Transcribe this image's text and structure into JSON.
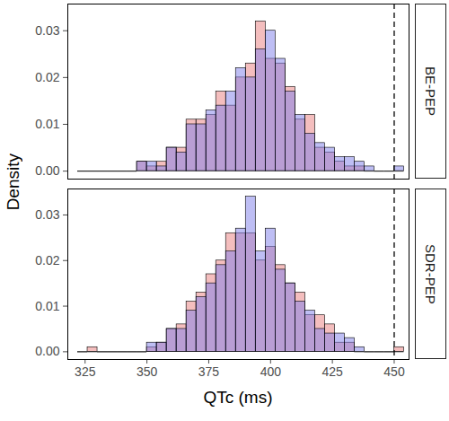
{
  "chart_data": {
    "type": "histogram",
    "xlabel": "QTc (ms)",
    "ylabel": "Density",
    "xlim": [
      318,
      456
    ],
    "xticks": [
      325,
      350,
      375,
      400,
      425,
      450
    ],
    "ylim": [
      -0.0017,
      0.0357
    ],
    "yticks": [
      {
        "value": 0,
        "label": "0.00"
      },
      {
        "value": 0.01,
        "label": "0.01"
      },
      {
        "value": 0.02,
        "label": "0.02"
      },
      {
        "value": 0.03,
        "label": "0.03"
      }
    ],
    "bins": [
      322,
      326,
      330,
      334,
      338,
      342,
      346,
      350,
      354,
      358,
      362,
      366,
      370,
      374,
      378,
      382,
      386,
      390,
      394,
      398,
      402,
      406,
      410,
      414,
      418,
      422,
      426,
      430,
      434,
      438,
      442,
      446,
      450,
      454
    ],
    "reference_lines": [
      {
        "x": 450,
        "line_style": "dashed"
      }
    ],
    "facets": [
      {
        "label": "BE-PEP",
        "series": [
          {
            "color": "#e97d7d",
            "values": [
              0,
              0,
              0,
              0,
              0,
              0,
              0.002,
              0.001,
              0.002,
              0.005,
              0.005,
              0.011,
              0.011,
              0.012,
              0.017,
              0.014,
              0.02,
              0.023,
              0.032,
              0.024,
              0.023,
              0.018,
              0.011,
              0.012,
              0.005,
              0.004,
              0.002,
              0.001,
              0.001,
              0,
              0,
              0,
              0
            ]
          },
          {
            "color": "#7d7de9",
            "values": [
              0,
              0,
              0,
              0,
              0,
              0,
              0.002,
              0.002,
              0.001,
              0.005,
              0.004,
              0.01,
              0.01,
              0.013,
              0.014,
              0.017,
              0.022,
              0.02,
              0.026,
              0.03,
              0.024,
              0.017,
              0.012,
              0.008,
              0.006,
              0.005,
              0.003,
              0.003,
              0.002,
              0.001,
              0,
              0,
              0.001
            ]
          }
        ]
      },
      {
        "label": "SDR-PEP",
        "series": [
          {
            "color": "#e97d7d",
            "values": [
              0,
              0.001,
              0,
              0,
              0,
              0,
              0,
              0.001,
              0.002,
              0.005,
              0.006,
              0.011,
              0.013,
              0.017,
              0.02,
              0.026,
              0.026,
              0.026,
              0.02,
              0.023,
              0.019,
              0.015,
              0.013,
              0.008,
              0.008,
              0.006,
              0.002,
              0.002,
              0,
              0,
              0,
              0,
              0.001
            ]
          },
          {
            "color": "#7d7de9",
            "values": [
              0,
              0,
              0,
              0,
              0,
              0,
              0,
              0.002,
              0.002,
              0.005,
              0.005,
              0.009,
              0.012,
              0.015,
              0.019,
              0.022,
              0.027,
              0.034,
              0.022,
              0.027,
              0.018,
              0.015,
              0.011,
              0.009,
              0.005,
              0.004,
              0.004,
              0.003,
              0.001,
              0,
              0,
              0,
              0
            ]
          }
        ]
      }
    ]
  }
}
